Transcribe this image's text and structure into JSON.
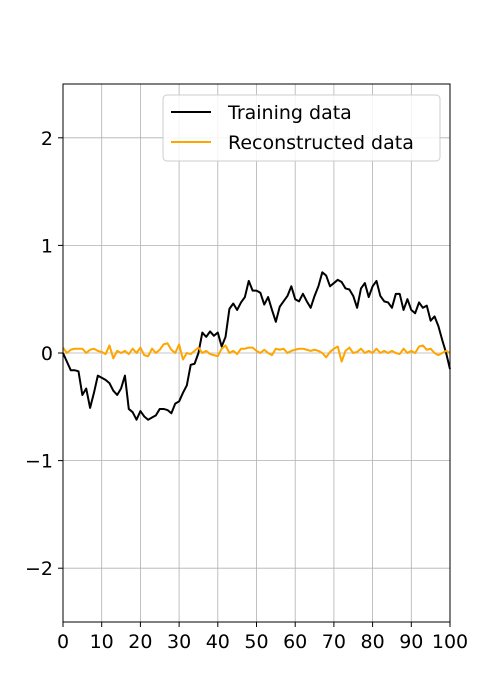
{
  "chart_data": {
    "type": "line",
    "title": "",
    "xlabel": "",
    "ylabel": "",
    "xlim": [
      0,
      100
    ],
    "ylim": [
      -2.5,
      2.5
    ],
    "xticks": [
      0,
      10,
      20,
      30,
      40,
      50,
      60,
      70,
      80,
      90,
      100
    ],
    "yticks": [
      -2,
      -1,
      0,
      1,
      2
    ],
    "xtick_labels": [
      "0",
      "10",
      "20",
      "30",
      "40",
      "50",
      "60",
      "70",
      "80",
      "90",
      "100"
    ],
    "ytick_labels": [
      "−2",
      "−1",
      "0",
      "1",
      "2"
    ],
    "grid": true,
    "legend_position": "upper right",
    "series": [
      {
        "name": "Training data",
        "color": "#000000",
        "x": [
          0,
          1,
          2,
          3,
          4,
          5,
          6,
          7,
          8,
          9,
          10,
          11,
          12,
          13,
          14,
          15,
          16,
          17,
          18,
          19,
          20,
          21,
          22,
          23,
          24,
          25,
          26,
          27,
          28,
          29,
          30,
          31,
          32,
          33,
          34,
          35,
          36,
          37,
          38,
          39,
          40,
          41,
          42,
          43,
          44,
          45,
          46,
          47,
          48,
          49,
          50,
          51,
          52,
          53,
          54,
          55,
          56,
          57,
          58,
          59,
          60,
          61,
          62,
          63,
          64,
          65,
          66,
          67,
          68,
          69,
          70,
          71,
          72,
          73,
          74,
          75,
          76,
          77,
          78,
          79,
          80,
          81,
          82,
          83,
          84,
          85,
          86,
          87,
          88,
          89,
          90,
          91,
          92,
          93,
          94,
          95,
          96,
          97,
          98,
          99,
          100
        ],
        "y": [
          0.0,
          -0.08,
          -0.16,
          -0.16,
          -0.17,
          -0.39,
          -0.33,
          -0.51,
          -0.37,
          -0.21,
          -0.23,
          -0.25,
          -0.28,
          -0.35,
          -0.39,
          -0.33,
          -0.21,
          -0.52,
          -0.55,
          -0.62,
          -0.54,
          -0.59,
          -0.62,
          -0.6,
          -0.58,
          -0.52,
          -0.52,
          -0.53,
          -0.56,
          -0.47,
          -0.45,
          -0.37,
          -0.3,
          -0.11,
          -0.1,
          0.0,
          0.19,
          0.15,
          0.2,
          0.16,
          0.19,
          0.06,
          0.15,
          0.41,
          0.46,
          0.4,
          0.47,
          0.52,
          0.67,
          0.58,
          0.58,
          0.56,
          0.45,
          0.52,
          0.4,
          0.29,
          0.43,
          0.48,
          0.53,
          0.62,
          0.5,
          0.48,
          0.55,
          0.48,
          0.42,
          0.53,
          0.62,
          0.75,
          0.72,
          0.62,
          0.65,
          0.68,
          0.66,
          0.6,
          0.59,
          0.53,
          0.42,
          0.6,
          0.65,
          0.52,
          0.62,
          0.67,
          0.53,
          0.48,
          0.47,
          0.42,
          0.55,
          0.55,
          0.4,
          0.5,
          0.4,
          0.37,
          0.47,
          0.42,
          0.44,
          0.3,
          0.34,
          0.25,
          0.12,
          0.0,
          -0.15
        ]
      },
      {
        "name": "Reconstructed data",
        "color": "#ffa500",
        "x": [
          0,
          1,
          2,
          3,
          4,
          5,
          6,
          7,
          8,
          9,
          10,
          11,
          12,
          13,
          14,
          15,
          16,
          17,
          18,
          19,
          20,
          21,
          22,
          23,
          24,
          25,
          26,
          27,
          28,
          29,
          30,
          31,
          32,
          33,
          34,
          35,
          36,
          37,
          38,
          39,
          40,
          41,
          42,
          43,
          44,
          45,
          46,
          47,
          48,
          49,
          50,
          51,
          52,
          53,
          54,
          55,
          56,
          57,
          58,
          59,
          60,
          61,
          62,
          63,
          64,
          65,
          66,
          67,
          68,
          69,
          70,
          71,
          72,
          73,
          74,
          75,
          76,
          77,
          78,
          79,
          80,
          81,
          82,
          83,
          84,
          85,
          86,
          87,
          88,
          89,
          90,
          91,
          92,
          93,
          94,
          95,
          96,
          97,
          98,
          99,
          100
        ],
        "y": [
          0.05,
          0.0,
          0.03,
          0.04,
          0.04,
          0.04,
          0.0,
          0.03,
          0.04,
          0.02,
          0.01,
          -0.01,
          0.07,
          -0.05,
          0.02,
          0.0,
          0.02,
          -0.01,
          0.04,
          0.0,
          0.05,
          -0.02,
          -0.03,
          0.04,
          0.0,
          0.03,
          0.08,
          0.09,
          0.03,
          0.0,
          0.08,
          -0.06,
          0.0,
          -0.01,
          0.02,
          0.05,
          0.0,
          0.02,
          -0.01,
          -0.02,
          -0.03,
          0.04,
          0.07,
          0.0,
          0.02,
          -0.01,
          0.04,
          0.04,
          0.05,
          0.05,
          0.02,
          0.0,
          0.03,
          0.0,
          -0.02,
          0.04,
          0.03,
          0.04,
          0.0,
          0.02,
          0.03,
          0.04,
          0.04,
          0.03,
          0.02,
          0.03,
          0.02,
          0.0,
          -0.04,
          0.01,
          0.04,
          0.06,
          -0.08,
          0.02,
          0.05,
          0.0,
          0.01,
          0.04,
          0.0,
          0.02,
          0.0,
          0.04,
          0.0,
          0.02,
          0.0,
          0.02,
          0.0,
          -0.01,
          0.04,
          0.0,
          0.02,
          0.0,
          0.06,
          0.07,
          0.03,
          0.04,
          0.0,
          -0.02,
          0.0,
          0.02,
          0.0
        ]
      }
    ]
  }
}
